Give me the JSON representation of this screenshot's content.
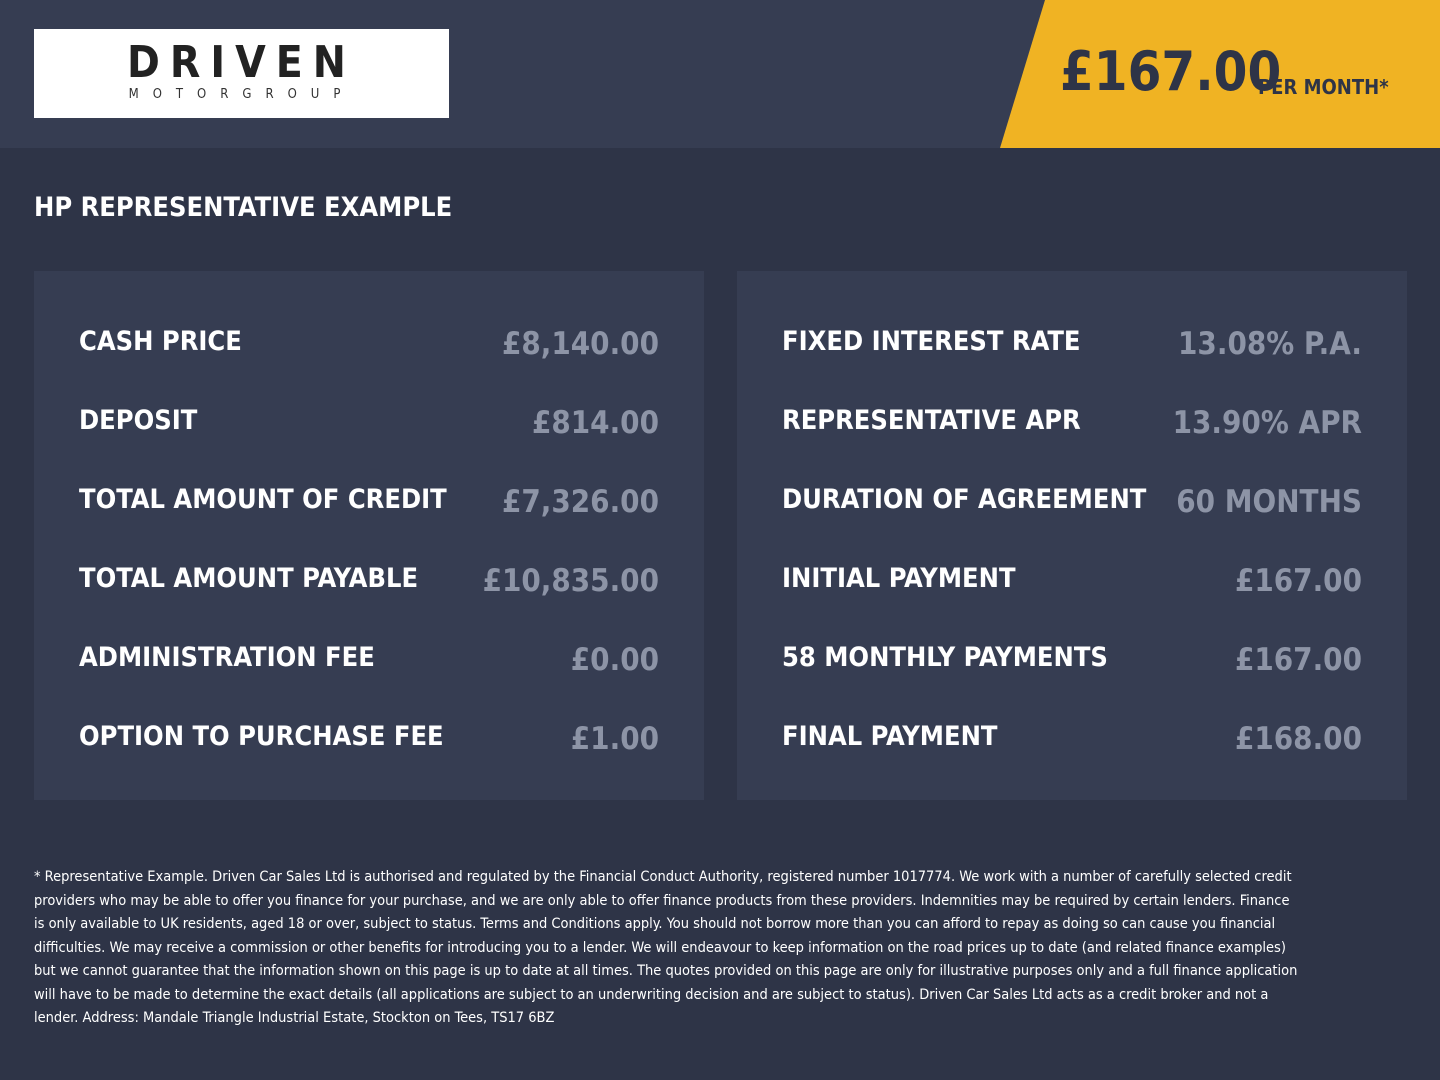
{
  "logo": {
    "name": "DRIVEN",
    "sub": "MOTORGROUP"
  },
  "price": {
    "amount": "£167.00",
    "suffix": "PER MONTH*"
  },
  "heading": "HP REPRESENTATIVE EXAMPLE",
  "left": [
    [
      "CASH PRICE",
      "£8,140.00"
    ],
    [
      "DEPOSIT",
      "£814.00"
    ],
    [
      "TOTAL AMOUNT OF CREDIT",
      "£7,326.00"
    ],
    [
      "TOTAL AMOUNT PAYABLE",
      "£10,835.00"
    ],
    [
      "ADMINISTRATION FEE",
      "£0.00"
    ],
    [
      "OPTION TO PURCHASE FEE",
      "£1.00"
    ]
  ],
  "right": [
    [
      "FIXED INTEREST RATE",
      "13.08% P.A."
    ],
    [
      "REPRESENTATIVE APR",
      "13.90% APR"
    ],
    [
      "DURATION OF AGREEMENT",
      "60 MONTHS"
    ],
    [
      "INITIAL PAYMENT",
      "£167.00"
    ],
    [
      "58 MONTHLY PAYMENTS",
      "£167.00"
    ],
    [
      "FINAL PAYMENT",
      "£168.00"
    ]
  ],
  "disclaimer": "* Representative Example. Driven Car Sales Ltd is authorised and regulated by the Financial Conduct Authority, registered number 1017774. We work with a number of carefully selected credit providers who may be able to offer you finance for your purchase, and we are only able to offer finance products from these providers. Indemnities may be required by certain lenders. Finance is only available to UK residents, aged 18 or over, subject to status. Terms and Conditions apply. You should not borrow more than you can afford to repay as doing so can cause you financial difficulties. We may receive a commission or other benefits for introducing you to a lender. We will endeavour to keep information on the road prices up to date (and related finance examples) but we cannot guarantee that the information shown on this page is up to date at all times. The quotes provided on this page are only for illustrative purposes only and a full finance application will have to be made to determine the exact details (all applications are subject to an underwriting decision and are subject to status). Driven Car Sales Ltd acts as a credit broker and not a lender. Address: Mandale Triangle Industrial Estate, Stockton on Tees, TS17 6BZ"
}
